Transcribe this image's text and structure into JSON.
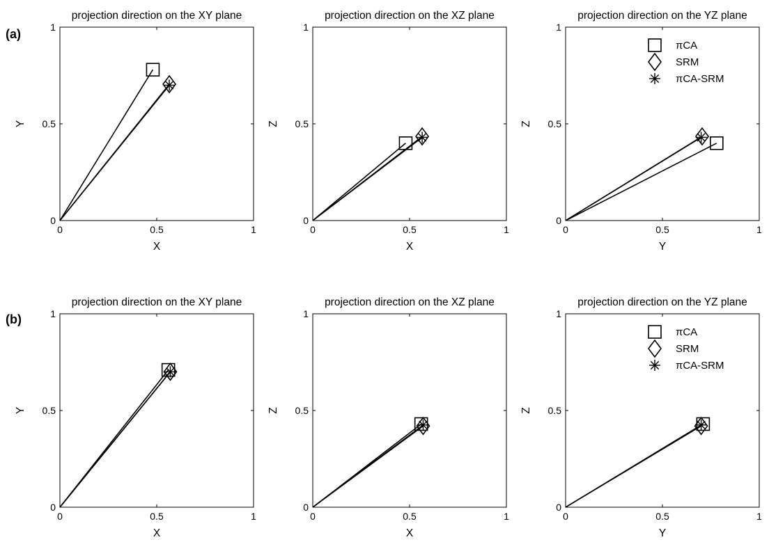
{
  "colors": {
    "ink": "#000000",
    "background": "#ffffff"
  },
  "panel_labels": [
    "(a)",
    "(b)"
  ],
  "legend_items": [
    "πCA",
    "SRM",
    "πCA-SRM"
  ],
  "chart_data": [
    {
      "type": "line",
      "row": "(a)",
      "title": "projection direction on the XY plane",
      "xlabel": "X",
      "ylabel": "Y",
      "xlim": [
        0,
        1
      ],
      "ylim": [
        0,
        1
      ],
      "xticks": [
        "0",
        "0.5",
        "1"
      ],
      "yticks": [
        "0",
        "0.5",
        "1"
      ],
      "grid": false,
      "legend": null,
      "series": [
        {
          "name": "πCA",
          "marker": "square",
          "x": [
            0,
            0.48
          ],
          "y": [
            0,
            0.78
          ]
        },
        {
          "name": "SRM",
          "marker": "diamond",
          "x": [
            0,
            0.565
          ],
          "y": [
            0,
            0.705
          ]
        },
        {
          "name": "πCA-SRM",
          "marker": "asterisk",
          "x": [
            0,
            0.565
          ],
          "y": [
            0,
            0.7
          ]
        }
      ]
    },
    {
      "type": "line",
      "row": "(a)",
      "title": "projection direction on the XZ plane",
      "xlabel": "X",
      "ylabel": "Z",
      "xlim": [
        0,
        1
      ],
      "ylim": [
        0,
        1
      ],
      "xticks": [
        "0",
        "0.5",
        "1"
      ],
      "yticks": [
        "0",
        "0.5",
        "1"
      ],
      "grid": false,
      "legend": null,
      "series": [
        {
          "name": "πCA",
          "marker": "square",
          "x": [
            0,
            0.48
          ],
          "y": [
            0,
            0.4
          ]
        },
        {
          "name": "SRM",
          "marker": "diamond",
          "x": [
            0,
            0.565
          ],
          "y": [
            0,
            0.435
          ]
        },
        {
          "name": "πCA-SRM",
          "marker": "asterisk",
          "x": [
            0,
            0.565
          ],
          "y": [
            0,
            0.43
          ]
        }
      ]
    },
    {
      "type": "line",
      "row": "(a)",
      "title": "projection direction on the YZ plane",
      "xlabel": "Y",
      "ylabel": "Z",
      "xlim": [
        0,
        1
      ],
      "ylim": [
        0,
        1
      ],
      "xticks": [
        "0",
        "0.5",
        "1"
      ],
      "yticks": [
        "0",
        "0.5",
        "1"
      ],
      "grid": false,
      "legend": "top-right",
      "series": [
        {
          "name": "πCA",
          "marker": "square",
          "x": [
            0,
            0.78
          ],
          "y": [
            0,
            0.4
          ]
        },
        {
          "name": "SRM",
          "marker": "diamond",
          "x": [
            0,
            0.705
          ],
          "y": [
            0,
            0.435
          ]
        },
        {
          "name": "πCA-SRM",
          "marker": "asterisk",
          "x": [
            0,
            0.7
          ],
          "y": [
            0,
            0.43
          ]
        }
      ]
    },
    {
      "type": "line",
      "row": "(b)",
      "title": "projection direction on the XY plane",
      "xlabel": "X",
      "ylabel": "Y",
      "xlim": [
        0,
        1
      ],
      "ylim": [
        0,
        1
      ],
      "xticks": [
        "0",
        "0.5",
        "1"
      ],
      "yticks": [
        "0",
        "0.5",
        "1"
      ],
      "grid": false,
      "legend": null,
      "series": [
        {
          "name": "πCA",
          "marker": "square",
          "x": [
            0,
            0.56
          ],
          "y": [
            0,
            0.71
          ]
        },
        {
          "name": "SRM",
          "marker": "diamond",
          "x": [
            0,
            0.57
          ],
          "y": [
            0,
            0.7
          ]
        },
        {
          "name": "πCA-SRM",
          "marker": "asterisk",
          "x": [
            0,
            0.57
          ],
          "y": [
            0,
            0.7
          ]
        }
      ]
    },
    {
      "type": "line",
      "row": "(b)",
      "title": "projection direction on the XZ plane",
      "xlabel": "X",
      "ylabel": "Z",
      "xlim": [
        0,
        1
      ],
      "ylim": [
        0,
        1
      ],
      "xticks": [
        "0",
        "0.5",
        "1"
      ],
      "yticks": [
        "0",
        "0.5",
        "1"
      ],
      "grid": false,
      "legend": null,
      "series": [
        {
          "name": "πCA",
          "marker": "square",
          "x": [
            0,
            0.56
          ],
          "y": [
            0,
            0.43
          ]
        },
        {
          "name": "SRM",
          "marker": "diamond",
          "x": [
            0,
            0.57
          ],
          "y": [
            0,
            0.42
          ]
        },
        {
          "name": "πCA-SRM",
          "marker": "asterisk",
          "x": [
            0,
            0.57
          ],
          "y": [
            0,
            0.425
          ]
        }
      ]
    },
    {
      "type": "line",
      "row": "(b)",
      "title": "projection direction on the YZ plane",
      "xlabel": "Y",
      "ylabel": "Z",
      "xlim": [
        0,
        1
      ],
      "ylim": [
        0,
        1
      ],
      "xticks": [
        "0",
        "0.5",
        "1"
      ],
      "yticks": [
        "0",
        "0.5",
        "1"
      ],
      "grid": false,
      "legend": "top-right",
      "series": [
        {
          "name": "πCA",
          "marker": "square",
          "x": [
            0,
            0.71
          ],
          "y": [
            0,
            0.43
          ]
        },
        {
          "name": "SRM",
          "marker": "diamond",
          "x": [
            0,
            0.7
          ],
          "y": [
            0,
            0.42
          ]
        },
        {
          "name": "πCA-SRM",
          "marker": "asterisk",
          "x": [
            0,
            0.7
          ],
          "y": [
            0,
            0.425
          ]
        }
      ]
    }
  ]
}
